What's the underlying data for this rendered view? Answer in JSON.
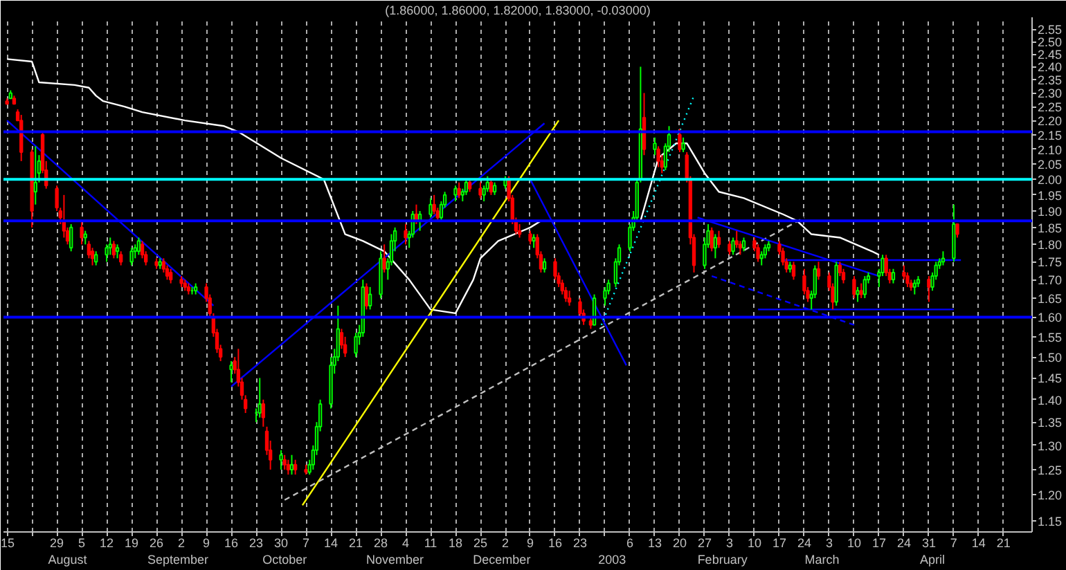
{
  "chart_data": {
    "type": "candlestick",
    "title": "(1.86000, 1.86000, 1.82000, 1.83000, -0.03000)",
    "x": [
      "2002-07-15",
      "2002-07-16",
      "2002-07-17",
      "2002-07-18",
      "2002-07-19",
      "2002-07-22",
      "2002-07-23",
      "2002-07-24",
      "2002-07-25",
      "2002-07-26",
      "2002-07-29",
      "2002-07-30",
      "2002-07-31",
      "2002-08-01",
      "2002-08-02",
      "2002-08-05",
      "2002-08-06",
      "2002-08-07",
      "2002-08-08",
      "2002-08-09",
      "2002-08-12",
      "2002-08-13",
      "2002-08-14",
      "2002-08-15",
      "2002-08-16",
      "2002-08-19",
      "2002-08-20",
      "2002-08-21",
      "2002-08-22",
      "2002-08-23",
      "2002-08-26",
      "2002-08-27",
      "2002-08-28",
      "2002-08-29",
      "2002-08-30",
      "2002-09-02",
      "2002-09-03",
      "2002-09-04",
      "2002-09-05",
      "2002-09-06",
      "2002-09-09",
      "2002-09-10",
      "2002-09-11",
      "2002-09-12",
      "2002-09-13",
      "2002-09-16",
      "2002-09-17",
      "2002-09-18",
      "2002-09-19",
      "2002-09-20",
      "2002-09-23",
      "2002-09-24",
      "2002-09-25",
      "2002-09-26",
      "2002-09-27",
      "2002-09-30",
      "2002-10-01",
      "2002-10-02",
      "2002-10-03",
      "2002-10-04",
      "2002-10-07",
      "2002-10-08",
      "2002-10-09",
      "2002-10-10",
      "2002-10-11",
      "2002-10-14",
      "2002-10-15",
      "2002-10-16",
      "2002-10-17",
      "2002-10-18",
      "2002-10-21",
      "2002-10-22",
      "2002-10-23",
      "2002-10-24",
      "2002-10-25",
      "2002-10-28",
      "2002-10-29",
      "2002-10-30",
      "2002-10-31",
      "2002-11-01",
      "2002-11-04",
      "2002-11-05",
      "2002-11-06",
      "2002-11-07",
      "2002-11-08",
      "2002-11-11",
      "2002-11-12",
      "2002-11-13",
      "2002-11-14",
      "2002-11-15",
      "2002-11-18",
      "2002-11-19",
      "2002-11-20",
      "2002-11-21",
      "2002-11-22",
      "2002-11-25",
      "2002-11-26",
      "2002-11-27",
      "2002-11-28",
      "2002-11-29",
      "2002-12-02",
      "2002-12-03",
      "2002-12-04",
      "2002-12-05",
      "2002-12-06",
      "2002-12-09",
      "2002-12-10",
      "2002-12-11",
      "2002-12-12",
      "2002-12-13",
      "2002-12-16",
      "2002-12-17",
      "2002-12-18",
      "2002-12-19",
      "2002-12-20",
      "2002-12-23",
      "2002-12-24",
      "2002-12-26",
      "2002-12-27",
      "2002-12-30",
      "2002-12-31",
      "2003-01-02",
      "2003-01-03",
      "2003-01-06",
      "2003-01-07",
      "2003-01-08",
      "2003-01-09",
      "2003-01-10",
      "2003-01-13",
      "2003-01-14",
      "2003-01-15",
      "2003-01-16",
      "2003-01-17",
      "2003-01-20",
      "2003-01-21",
      "2003-01-22",
      "2003-01-23",
      "2003-01-24",
      "2003-01-27",
      "2003-01-28",
      "2003-01-29",
      "2003-01-30",
      "2003-01-31",
      "2003-02-03",
      "2003-02-04",
      "2003-02-05",
      "2003-02-06",
      "2003-02-07",
      "2003-02-10",
      "2003-02-11",
      "2003-02-12",
      "2003-02-13",
      "2003-02-14",
      "2003-02-17",
      "2003-02-18",
      "2003-02-19",
      "2003-02-20",
      "2003-02-21",
      "2003-02-24",
      "2003-02-25",
      "2003-02-26",
      "2003-02-27",
      "2003-02-28",
      "2003-03-03",
      "2003-03-04",
      "2003-03-05",
      "2003-03-06",
      "2003-03-07",
      "2003-03-10",
      "2003-03-11",
      "2003-03-12",
      "2003-03-13",
      "2003-03-14",
      "2003-03-17",
      "2003-03-18",
      "2003-03-19",
      "2003-03-20",
      "2003-03-21",
      "2003-03-24",
      "2003-03-25",
      "2003-03-26",
      "2003-03-27",
      "2003-03-28",
      "2003-03-31",
      "2003-04-01",
      "2003-04-02",
      "2003-04-03",
      "2003-04-04",
      "2003-04-07",
      "2003-04-08"
    ],
    "ohlc": [
      [
        2.27,
        2.28,
        2.26,
        2.26
      ],
      [
        2.28,
        2.31,
        2.28,
        2.3
      ],
      [
        2.28,
        2.29,
        2.26,
        2.26
      ],
      [
        2.23,
        2.24,
        2.2,
        2.2
      ],
      [
        2.2,
        2.22,
        2.06,
        2.09
      ],
      [
        2.09,
        2.1,
        1.85,
        1.9
      ],
      [
        1.96,
        2.11,
        1.92,
        1.99
      ],
      [
        2.02,
        2.08,
        1.99,
        2.06
      ],
      [
        2.15,
        2.16,
        2.02,
        2.03
      ],
      [
        2.03,
        2.06,
        1.97,
        1.98
      ],
      [
        1.97,
        1.98,
        1.9,
        1.91
      ],
      [
        1.9,
        1.91,
        1.86,
        1.88
      ],
      [
        1.87,
        1.95,
        1.82,
        1.84
      ],
      [
        1.84,
        1.85,
        1.8,
        1.81
      ],
      [
        1.79,
        1.86,
        1.78,
        1.85
      ],
      [
        1.85,
        1.87,
        1.8,
        1.82
      ],
      [
        1.82,
        1.84,
        1.8,
        1.83
      ],
      [
        1.8,
        1.81,
        1.76,
        1.77
      ],
      [
        1.78,
        1.79,
        1.74,
        1.76
      ],
      [
        1.75,
        1.78,
        1.74,
        1.77
      ],
      [
        1.77,
        1.8,
        1.75,
        1.79
      ],
      [
        1.79,
        1.82,
        1.77,
        1.8
      ],
      [
        1.8,
        1.81,
        1.76,
        1.77
      ],
      [
        1.78,
        1.8,
        1.76,
        1.79
      ],
      [
        1.77,
        1.78,
        1.74,
        1.75
      ],
      [
        1.75,
        1.79,
        1.74,
        1.78
      ],
      [
        1.78,
        1.8,
        1.76,
        1.79
      ],
      [
        1.78,
        1.82,
        1.77,
        1.81
      ],
      [
        1.8,
        1.81,
        1.76,
        1.77
      ],
      [
        1.77,
        1.78,
        1.74,
        1.75
      ],
      [
        1.75,
        1.76,
        1.73,
        1.74
      ],
      [
        1.74,
        1.76,
        1.73,
        1.75
      ],
      [
        1.75,
        1.76,
        1.72,
        1.73
      ],
      [
        1.73,
        1.74,
        1.7,
        1.71
      ],
      [
        1.72,
        1.73,
        1.69,
        1.7
      ],
      [
        1.7,
        1.71,
        1.68,
        1.69
      ],
      [
        1.69,
        1.7,
        1.67,
        1.68
      ],
      [
        1.68,
        1.69,
        1.66,
        1.67
      ],
      [
        1.67,
        1.68,
        1.66,
        1.67
      ],
      [
        1.67,
        1.69,
        1.66,
        1.68
      ],
      [
        1.68,
        1.69,
        1.64,
        1.65
      ],
      [
        1.65,
        1.66,
        1.6,
        1.61
      ],
      [
        1.6,
        1.61,
        1.55,
        1.56
      ],
      [
        1.56,
        1.57,
        1.51,
        1.52
      ],
      [
        1.52,
        1.53,
        1.49,
        1.5
      ],
      [
        1.47,
        1.49,
        1.44,
        1.48
      ],
      [
        1.49,
        1.5,
        1.46,
        1.47
      ],
      [
        1.47,
        1.52,
        1.43,
        1.44
      ],
      [
        1.44,
        1.45,
        1.4,
        1.41
      ],
      [
        1.4,
        1.41,
        1.37,
        1.38
      ],
      [
        1.37,
        1.38,
        1.35,
        1.37
      ],
      [
        1.37,
        1.45,
        1.36,
        1.39
      ],
      [
        1.39,
        1.4,
        1.34,
        1.36
      ],
      [
        1.33,
        1.34,
        1.28,
        1.29
      ],
      [
        1.29,
        1.31,
        1.25,
        1.27
      ],
      [
        1.27,
        1.29,
        1.25,
        1.28
      ],
      [
        1.27,
        1.28,
        1.25,
        1.26
      ],
      [
        1.26,
        1.27,
        1.24,
        1.25
      ],
      [
        1.25,
        1.28,
        1.24,
        1.26
      ],
      [
        1.26,
        1.27,
        1.24,
        1.25
      ],
      [
        1.25,
        1.26,
        1.24,
        1.245
      ],
      [
        1.245,
        1.27,
        1.24,
        1.26
      ],
      [
        1.26,
        1.3,
        1.25,
        1.29
      ],
      [
        1.29,
        1.35,
        1.28,
        1.34
      ],
      [
        1.34,
        1.4,
        1.33,
        1.39
      ],
      [
        1.39,
        1.5,
        1.38,
        1.48
      ],
      [
        1.48,
        1.52,
        1.46,
        1.5
      ],
      [
        1.5,
        1.63,
        1.49,
        1.57
      ],
      [
        1.56,
        1.57,
        1.52,
        1.53
      ],
      [
        1.53,
        1.55,
        1.5,
        1.51
      ],
      [
        1.51,
        1.56,
        1.5,
        1.55
      ],
      [
        1.55,
        1.58,
        1.53,
        1.56
      ],
      [
        1.56,
        1.7,
        1.55,
        1.68
      ],
      [
        1.68,
        1.69,
        1.62,
        1.63
      ],
      [
        1.63,
        1.68,
        1.62,
        1.66
      ],
      [
        1.66,
        1.78,
        1.65,
        1.76
      ],
      [
        1.76,
        1.8,
        1.72,
        1.73
      ],
      [
        1.73,
        1.76,
        1.7,
        1.75
      ],
      [
        1.75,
        1.83,
        1.74,
        1.81
      ],
      [
        1.81,
        1.85,
        1.78,
        1.84
      ],
      [
        1.84,
        1.86,
        1.8,
        1.82
      ],
      [
        1.82,
        1.84,
        1.79,
        1.83
      ],
      [
        1.83,
        1.9,
        1.82,
        1.89
      ],
      [
        1.89,
        1.92,
        1.86,
        1.87
      ],
      [
        1.87,
        1.9,
        1.84,
        1.89
      ],
      [
        1.89,
        1.94,
        1.88,
        1.92
      ],
      [
        1.92,
        1.95,
        1.89,
        1.9
      ],
      [
        1.9,
        1.91,
        1.87,
        1.88
      ],
      [
        1.88,
        1.93,
        1.87,
        1.92
      ],
      [
        1.92,
        1.96,
        1.91,
        1.95
      ],
      [
        1.95,
        1.98,
        1.93,
        1.97
      ],
      [
        1.97,
        1.99,
        1.94,
        1.95
      ],
      [
        1.95,
        1.97,
        1.93,
        1.96
      ],
      [
        1.96,
        2.0,
        1.95,
        1.99
      ],
      [
        1.99,
        2.0,
        1.96,
        1.97
      ],
      [
        1.97,
        1.99,
        1.94,
        1.95
      ],
      [
        1.95,
        1.98,
        1.93,
        1.97
      ],
      [
        1.97,
        2.01,
        1.96,
        1.99
      ],
      [
        1.99,
        2.0,
        1.95,
        1.96
      ],
      [
        1.96,
        1.99,
        1.95,
        1.98
      ],
      [
        1.98,
        2.01,
        1.97,
        2.0
      ],
      [
        2.0,
        2.01,
        1.93,
        1.94
      ],
      [
        1.94,
        1.95,
        1.86,
        1.87
      ],
      [
        1.87,
        1.88,
        1.83,
        1.84
      ],
      [
        1.84,
        1.86,
        1.82,
        1.83
      ],
      [
        1.83,
        1.84,
        1.8,
        1.81
      ],
      [
        1.81,
        1.83,
        1.79,
        1.82
      ],
      [
        1.82,
        1.83,
        1.76,
        1.77
      ],
      [
        1.77,
        1.78,
        1.72,
        1.73
      ],
      [
        1.73,
        1.76,
        1.72,
        1.75
      ],
      [
        1.75,
        1.76,
        1.7,
        1.71
      ],
      [
        1.71,
        1.72,
        1.68,
        1.69
      ],
      [
        1.69,
        1.7,
        1.66,
        1.67
      ],
      [
        1.67,
        1.68,
        1.64,
        1.65
      ],
      [
        1.65,
        1.67,
        1.63,
        1.64
      ],
      [
        1.64,
        1.65,
        1.6,
        1.61
      ],
      [
        1.61,
        1.62,
        1.58,
        1.59
      ],
      [
        1.59,
        1.6,
        1.57,
        1.58
      ],
      [
        1.58,
        1.66,
        1.58,
        1.65
      ],
      [
        1.65,
        1.68,
        1.63,
        1.67
      ],
      [
        1.67,
        1.7,
        1.66,
        1.69
      ],
      [
        1.69,
        1.76,
        1.68,
        1.75
      ],
      [
        1.75,
        1.8,
        1.74,
        1.79
      ],
      [
        1.79,
        1.86,
        1.78,
        1.85
      ],
      [
        1.85,
        1.9,
        1.84,
        1.88
      ],
      [
        1.88,
        2.0,
        1.87,
        1.99
      ],
      [
        2.0,
        2.4,
        1.99,
        2.17
      ],
      [
        2.21,
        2.3,
        2.08,
        2.1
      ],
      [
        2.1,
        2.14,
        2.08,
        2.12
      ],
      [
        2.1,
        2.11,
        2.04,
        2.06
      ],
      [
        2.06,
        2.08,
        2.02,
        2.04
      ],
      [
        2.04,
        2.12,
        2.03,
        2.11
      ],
      [
        2.11,
        2.18,
        2.09,
        2.15
      ],
      [
        2.15,
        2.17,
        2.09,
        2.1
      ],
      [
        2.1,
        2.14,
        2.09,
        2.12
      ],
      [
        2.08,
        2.09,
        1.99,
        2.0
      ],
      [
        2.0,
        2.01,
        1.8,
        1.82
      ],
      [
        1.82,
        1.83,
        1.72,
        1.74
      ],
      [
        1.74,
        1.82,
        1.73,
        1.8
      ],
      [
        1.8,
        1.86,
        1.79,
        1.84
      ],
      [
        1.84,
        1.85,
        1.78,
        1.79
      ],
      [
        1.79,
        1.83,
        1.76,
        1.82
      ],
      [
        1.82,
        1.84,
        1.79,
        1.8
      ],
      [
        1.8,
        1.81,
        1.77,
        1.78
      ],
      [
        1.78,
        1.82,
        1.77,
        1.81
      ],
      [
        1.81,
        1.84,
        1.79,
        1.8
      ],
      [
        1.8,
        1.81,
        1.77,
        1.79
      ],
      [
        1.79,
        1.82,
        1.78,
        1.81
      ],
      [
        1.81,
        1.82,
        1.78,
        1.79
      ],
      [
        1.79,
        1.8,
        1.75,
        1.76
      ],
      [
        1.76,
        1.78,
        1.74,
        1.77
      ],
      [
        1.77,
        1.8,
        1.76,
        1.79
      ],
      [
        1.79,
        1.81,
        1.78,
        1.8
      ],
      [
        1.8,
        1.81,
        1.77,
        1.78
      ],
      [
        1.78,
        1.79,
        1.74,
        1.75
      ],
      [
        1.75,
        1.76,
        1.72,
        1.73
      ],
      [
        1.73,
        1.75,
        1.72,
        1.74
      ],
      [
        1.74,
        1.75,
        1.7,
        1.71
      ],
      [
        1.71,
        1.73,
        1.66,
        1.67
      ],
      [
        1.67,
        1.68,
        1.64,
        1.65
      ],
      [
        1.65,
        1.67,
        1.62,
        1.66
      ],
      [
        1.66,
        1.74,
        1.65,
        1.73
      ],
      [
        1.73,
        1.75,
        1.7,
        1.71
      ],
      [
        1.71,
        1.72,
        1.67,
        1.68
      ],
      [
        1.68,
        1.69,
        1.62,
        1.64
      ],
      [
        1.64,
        1.75,
        1.63,
        1.74
      ],
      [
        1.74,
        1.75,
        1.71,
        1.72
      ],
      [
        1.72,
        1.73,
        1.69,
        1.7
      ],
      [
        1.7,
        1.71,
        1.65,
        1.66
      ],
      [
        1.66,
        1.68,
        1.64,
        1.67
      ],
      [
        1.67,
        1.69,
        1.65,
        1.66
      ],
      [
        1.66,
        1.71,
        1.65,
        1.7
      ],
      [
        1.7,
        1.72,
        1.69,
        1.71
      ],
      [
        1.71,
        1.73,
        1.68,
        1.72
      ],
      [
        1.72,
        1.77,
        1.71,
        1.76
      ],
      [
        1.76,
        1.77,
        1.71,
        1.72
      ],
      [
        1.72,
        1.73,
        1.69,
        1.7
      ],
      [
        1.7,
        1.73,
        1.69,
        1.72
      ],
      [
        1.72,
        1.74,
        1.7,
        1.71
      ],
      [
        1.71,
        1.72,
        1.68,
        1.69
      ],
      [
        1.69,
        1.7,
        1.67,
        1.68
      ],
      [
        1.68,
        1.7,
        1.66,
        1.69
      ],
      [
        1.69,
        1.71,
        1.68,
        1.7
      ],
      [
        1.7,
        1.71,
        1.64,
        1.68
      ],
      [
        1.68,
        1.72,
        1.67,
        1.71
      ],
      [
        1.71,
        1.75,
        1.7,
        1.74
      ],
      [
        1.74,
        1.76,
        1.73,
        1.75
      ],
      [
        1.75,
        1.78,
        1.74,
        1.76
      ],
      [
        1.76,
        1.92,
        1.75,
        1.86
      ],
      [
        1.86,
        1.86,
        1.82,
        1.83
      ]
    ],
    "series": [
      {
        "type": "line",
        "color": "#ffffff",
        "line_style": "solid",
        "x": [
          "2002-07-15",
          "2002-07-22",
          "2002-07-24",
          "2002-08-03",
          "2002-08-07",
          "2002-08-09",
          "2002-08-11",
          "2002-08-17",
          "2002-08-22",
          "2002-09-03",
          "2002-09-14",
          "2002-09-18",
          "2002-09-30",
          "2002-10-12",
          "2002-10-18",
          "2002-10-23",
          "2002-10-29",
          "2002-11-05",
          "2002-11-11",
          "2002-11-18",
          "2002-11-23",
          "2002-11-25",
          "2002-11-30",
          "2002-12-09",
          "2002-12-12",
          "2003-01-09",
          "2003-01-14",
          "2003-01-19",
          "2003-01-22",
          "2003-01-27",
          "2003-01-31",
          "2003-02-07",
          "2003-02-18",
          "2003-02-22",
          "2003-02-26",
          "2003-03-06",
          "2003-03-15",
          "2003-03-17"
        ],
        "values": [
          2.43,
          2.42,
          2.34,
          2.33,
          2.32,
          2.29,
          2.27,
          2.25,
          2.23,
          2.2,
          2.18,
          2.16,
          2.07,
          2.0,
          1.83,
          1.81,
          1.78,
          1.7,
          1.62,
          1.61,
          1.7,
          1.76,
          1.81,
          1.85,
          1.87,
          1.87,
          2.07,
          2.12,
          2.12,
          2.02,
          1.96,
          1.94,
          1.89,
          1.87,
          1.83,
          1.82,
          1.78,
          1.77
        ]
      },
      {
        "type": "line",
        "color": "#0000ff",
        "line_style": "solid",
        "x": [
          "2002-07-15",
          "2002-09-11"
        ],
        "values": [
          2.2,
          1.63
        ]
      },
      {
        "type": "line",
        "color": "#0000ff",
        "line_style": "solid",
        "x": [
          "2002-09-16",
          "2002-12-13"
        ],
        "values": [
          1.43,
          2.19
        ]
      },
      {
        "type": "line",
        "color": "#ffff00",
        "line_style": "solid",
        "x": [
          "2002-10-06",
          "2002-12-17"
        ],
        "values": [
          1.18,
          2.2
        ]
      },
      {
        "type": "line",
        "color": "#c0c0c0",
        "line_style": "dashed",
        "x": [
          "2002-10-01",
          "2003-02-24"
        ],
        "values": [
          1.19,
          1.88
        ]
      },
      {
        "type": "line",
        "color": "#0000ff",
        "line_style": "solid",
        "x": [
          "2002-12-09",
          "2003-01-05"
        ],
        "values": [
          2.0,
          1.48
        ]
      },
      {
        "type": "line",
        "color": "#00ffff",
        "line_style": "dotted",
        "x": [
          "2002-12-29",
          "2003-01-24"
        ],
        "values": [
          1.58,
          2.29
        ]
      },
      {
        "type": "line",
        "color": "#0000ff",
        "line_style": "solid",
        "x": [
          "2003-01-25",
          "2003-03-17"
        ],
        "values": [
          1.88,
          1.71
        ]
      },
      {
        "type": "line",
        "color": "#0000ff",
        "line_style": "dashed",
        "x": [
          "2003-01-29",
          "2003-03-10"
        ],
        "values": [
          1.71,
          1.58
        ]
      },
      {
        "type": "line",
        "color": "#0000ff",
        "line_style": "solid",
        "x": [
          "2003-02-18",
          "2003-04-09"
        ],
        "values": [
          1.755,
          1.755
        ]
      },
      {
        "type": "line",
        "color": "#0000ff",
        "line_style": "solid",
        "x": [
          "2003-02-11",
          "2003-04-07"
        ],
        "values": [
          1.62,
          1.62
        ]
      }
    ],
    "ref_lines": [
      {
        "axis": "y",
        "value": 2.16,
        "color": "#0000ff"
      },
      {
        "axis": "y",
        "value": 2.0,
        "color": "#00ffff"
      },
      {
        "axis": "y",
        "value": 1.87,
        "color": "#0000ff"
      },
      {
        "axis": "y",
        "value": 1.6,
        "color": "#0000ff"
      }
    ],
    "annotations": [
      "August",
      "September",
      "October",
      "November",
      "December",
      "2003",
      "February",
      "March",
      "April"
    ],
    "xlim": [
      "2002-07-14",
      "2003-04-29"
    ],
    "xticks": [
      {
        "value": "2002-07-15",
        "label": "15"
      },
      {
        "value": "2002-07-22",
        "label": null
      },
      {
        "value": "2002-07-29",
        "label": "29"
      },
      {
        "value": "2002-08-05",
        "label": "5"
      },
      {
        "value": "2002-08-12",
        "label": "12"
      },
      {
        "value": "2002-08-19",
        "label": "19"
      },
      {
        "value": "2002-08-26",
        "label": "26"
      },
      {
        "value": "2002-09-02",
        "label": "2"
      },
      {
        "value": "2002-09-09",
        "label": "9"
      },
      {
        "value": "2002-09-16",
        "label": "16"
      },
      {
        "value": "2002-09-23",
        "label": "23"
      },
      {
        "value": "2002-09-30",
        "label": "30"
      },
      {
        "value": "2002-10-07",
        "label": "7"
      },
      {
        "value": "2002-10-14",
        "label": "14"
      },
      {
        "value": "2002-10-21",
        "label": "21"
      },
      {
        "value": "2002-10-28",
        "label": "28"
      },
      {
        "value": "2002-11-04",
        "label": "4"
      },
      {
        "value": "2002-11-11",
        "label": "11"
      },
      {
        "value": "2002-11-18",
        "label": "18"
      },
      {
        "value": "2002-11-25",
        "label": "25"
      },
      {
        "value": "2002-12-02",
        "label": "2"
      },
      {
        "value": "2002-12-09",
        "label": "9"
      },
      {
        "value": "2002-12-16",
        "label": "16"
      },
      {
        "value": "2002-12-23",
        "label": "23"
      },
      {
        "value": "2002-12-30",
        "label": null
      },
      {
        "value": "2003-01-06",
        "label": "6"
      },
      {
        "value": "2003-01-13",
        "label": "13"
      },
      {
        "value": "2003-01-20",
        "label": "20"
      },
      {
        "value": "2003-01-27",
        "label": "27"
      },
      {
        "value": "2003-02-03",
        "label": "3"
      },
      {
        "value": "2003-02-10",
        "label": "10"
      },
      {
        "value": "2003-02-17",
        "label": "17"
      },
      {
        "value": "2003-02-24",
        "label": "24"
      },
      {
        "value": "2003-03-03",
        "label": "3"
      },
      {
        "value": "2003-03-10",
        "label": "10"
      },
      {
        "value": "2003-03-17",
        "label": "17"
      },
      {
        "value": "2003-03-24",
        "label": "24"
      },
      {
        "value": "2003-03-31",
        "label": "31"
      },
      {
        "value": "2003-04-07",
        "label": "7"
      },
      {
        "value": "2003-04-14",
        "label": "14"
      },
      {
        "value": "2003-04-21",
        "label": "21"
      }
    ],
    "ylim": [
      1.13,
      2.6
    ],
    "yticks": [
      1.15,
      {
        "value": 1.2,
        "label": "1.20"
      },
      1.25,
      {
        "value": 1.3,
        "label": "1.30"
      },
      1.35,
      {
        "value": 1.4,
        "label": "1.40"
      },
      1.45,
      {
        "value": 1.5,
        "label": "1.50"
      },
      1.55,
      {
        "value": 1.6,
        "label": "1.60"
      },
      1.65,
      {
        "value": 1.7,
        "label": "1.70"
      },
      1.75,
      {
        "value": 1.8,
        "label": "1.80"
      },
      1.85,
      {
        "value": 1.9,
        "label": "1.90"
      },
      1.95,
      {
        "value": 2.0,
        "label": "2.00"
      },
      2.05,
      {
        "value": 2.1,
        "label": "2.10"
      },
      2.15,
      {
        "value": 2.2,
        "label": "2.20"
      },
      2.25,
      {
        "value": 2.3,
        "label": "2.30"
      },
      2.35,
      {
        "value": 2.4,
        "label": "2.40"
      },
      2.45,
      {
        "value": 2.5,
        "label": "2.50"
      },
      2.55
    ],
    "log": "y",
    "grid": "x"
  }
}
